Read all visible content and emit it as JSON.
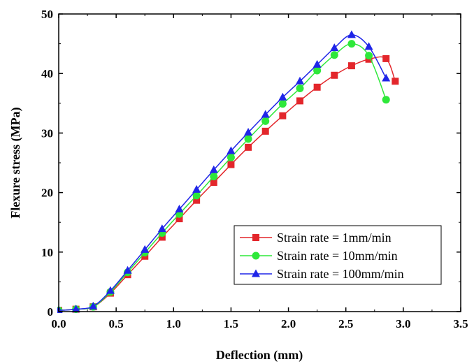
{
  "chart_data": {
    "type": "line",
    "title": "",
    "xlabel": "Deflection (mm)",
    "ylabel": "Flexure stress (MPa)",
    "xlim": [
      0,
      3.5
    ],
    "ylim": [
      0,
      50
    ],
    "xticks": [
      0.0,
      0.5,
      1.0,
      1.5,
      2.0,
      2.5,
      3.0,
      3.5
    ],
    "xtick_labels": [
      "0.0",
      "0.5",
      "1.0",
      "1.5",
      "2.0",
      "2.5",
      "3.0",
      "3.5"
    ],
    "yticks": [
      0,
      10,
      20,
      30,
      40,
      50
    ],
    "ytick_labels": [
      "0",
      "10",
      "20",
      "30",
      "40",
      "50"
    ],
    "grid": false,
    "legend_position": "bottom-right",
    "series": [
      {
        "name": "Strain rate = 1mm/min",
        "color": "#e3262b",
        "marker": "square",
        "x": [
          0.0,
          0.15,
          0.3,
          0.45,
          0.6,
          0.75,
          0.9,
          1.05,
          1.2,
          1.35,
          1.5,
          1.65,
          1.8,
          1.95,
          2.1,
          2.25,
          2.4,
          2.55,
          2.7,
          2.85,
          2.93
        ],
        "y": [
          0.2,
          0.4,
          0.8,
          3.1,
          6.2,
          9.3,
          12.5,
          15.6,
          18.7,
          21.7,
          24.7,
          27.6,
          30.3,
          32.9,
          35.4,
          37.7,
          39.7,
          41.3,
          42.4,
          42.5,
          38.7
        ]
      },
      {
        "name": "Strain rate = 10mm/min",
        "color": "#2ee83a",
        "marker": "circle",
        "x": [
          0.0,
          0.15,
          0.3,
          0.45,
          0.6,
          0.75,
          0.9,
          1.05,
          1.2,
          1.35,
          1.5,
          1.65,
          1.8,
          1.95,
          2.1,
          2.25,
          2.4,
          2.55,
          2.7,
          2.85
        ],
        "y": [
          0.2,
          0.4,
          0.8,
          3.3,
          6.6,
          9.9,
          13.2,
          16.4,
          19.5,
          22.7,
          25.9,
          29.0,
          32.0,
          34.9,
          37.5,
          40.5,
          43.1,
          45.0,
          43.0,
          35.6
        ]
      },
      {
        "name": "Strain rate = 100mm/min",
        "color": "#1f25e8",
        "marker": "triangle",
        "x": [
          0.0,
          0.15,
          0.3,
          0.45,
          0.6,
          0.75,
          0.9,
          1.05,
          1.2,
          1.35,
          1.5,
          1.65,
          1.8,
          1.95,
          2.1,
          2.25,
          2.4,
          2.55,
          2.7,
          2.85
        ],
        "y": [
          0.2,
          0.4,
          0.9,
          3.5,
          6.9,
          10.4,
          13.9,
          17.2,
          20.5,
          23.8,
          27.0,
          30.1,
          33.1,
          36.0,
          38.7,
          41.5,
          44.3,
          46.5,
          44.5,
          39.2
        ]
      }
    ]
  }
}
